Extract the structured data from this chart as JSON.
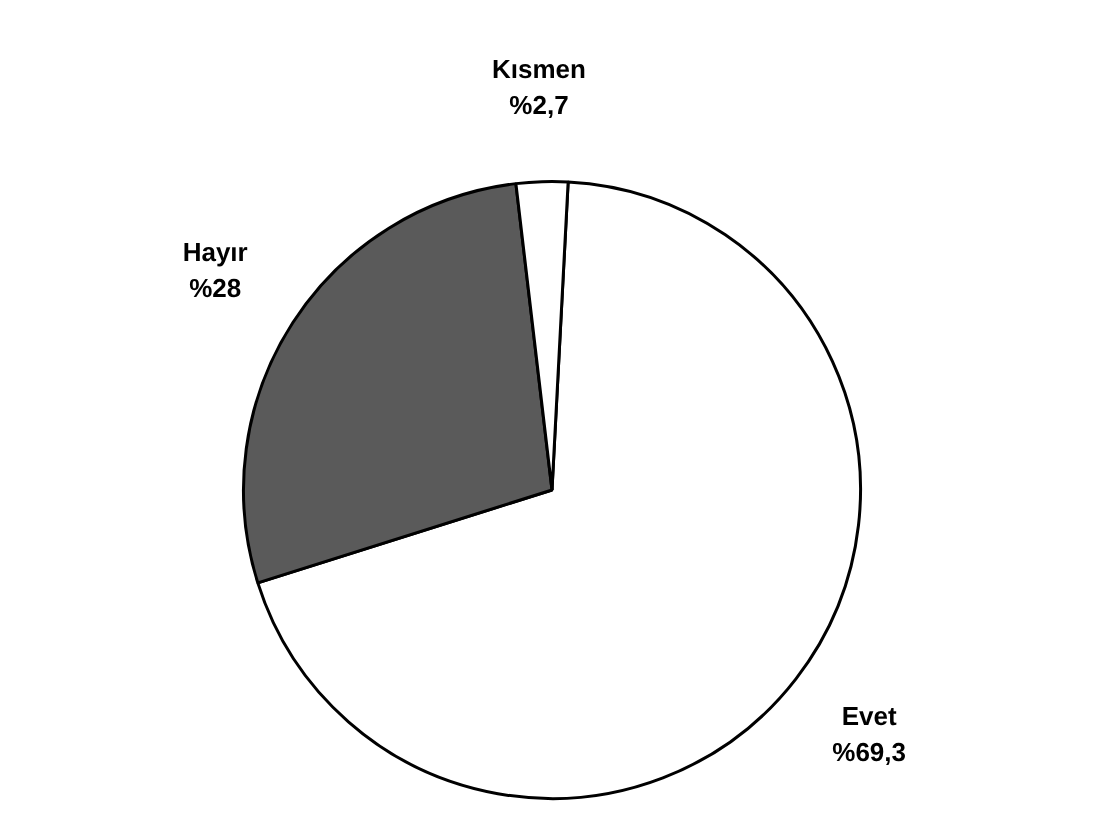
{
  "chart_data": {
    "type": "pie",
    "categories": [
      "Evet",
      "Hayır",
      "Kısmen"
    ],
    "values": [
      69.3,
      28,
      2.7
    ],
    "value_labels": [
      "%69,3",
      "%28",
      "%2,7"
    ],
    "colors": [
      "#ffffff",
      "#5a5a5a",
      "#ffffff"
    ],
    "legend": false
  }
}
